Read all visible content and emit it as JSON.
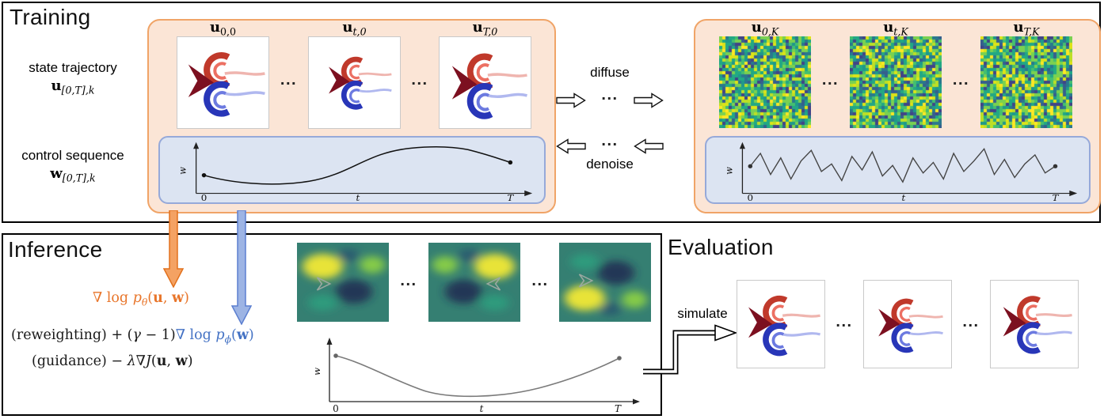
{
  "ellipsis": "...",
  "axis": {
    "y": "w",
    "x": "t",
    "start": "0",
    "end": "T"
  },
  "training": {
    "title": "Training",
    "state_label": "state trajectory",
    "state_math": [
      {
        "t": "u",
        "cls": "b"
      },
      {
        "t": "[0,T],k",
        "sub": true,
        "cls": "it"
      }
    ],
    "control_label": "control sequence",
    "control_math": [
      {
        "t": "w",
        "cls": "b"
      },
      {
        "t": "[0,T],k",
        "sub": true,
        "cls": "it"
      }
    ],
    "clean_frames": [
      [
        {
          "t": "u",
          "cls": "b"
        },
        {
          "t": "0,0",
          "sub": true
        }
      ],
      [
        {
          "t": "u",
          "cls": "b"
        },
        {
          "t": "t,0",
          "sub": true,
          "cls": "it"
        }
      ],
      [
        {
          "t": "u",
          "cls": "b"
        },
        {
          "t": "T,0",
          "sub": true,
          "cls": "it"
        }
      ]
    ],
    "noisy_frames": [
      [
        {
          "t": "u",
          "cls": "b"
        },
        {
          "t": "0,K",
          "sub": true,
          "cls": "it"
        }
      ],
      [
        {
          "t": "u",
          "cls": "b"
        },
        {
          "t": "t,K",
          "sub": true,
          "cls": "it"
        }
      ],
      [
        {
          "t": "u",
          "cls": "b"
        },
        {
          "t": "T,K",
          "sub": true,
          "cls": "it"
        }
      ]
    ],
    "diffuse": "diffuse",
    "denoise": "denoise"
  },
  "inference": {
    "title": "Inference",
    "eq1": [
      {
        "t": "∇ log ",
        "cls": "o"
      },
      {
        "t": "p",
        "cls": "o it"
      },
      {
        "t": "θ",
        "sub": true,
        "cls": "o it"
      },
      {
        "t": "(",
        "cls": "o"
      },
      {
        "t": "u",
        "cls": "o b"
      },
      {
        "t": ", ",
        "cls": "o"
      },
      {
        "t": "w",
        "cls": "o b"
      },
      {
        "t": ")",
        "cls": "o"
      }
    ],
    "eq2": [
      {
        "t": "(reweighting) + ("
      },
      {
        "t": "γ",
        "cls": "it"
      },
      {
        "t": " − 1)"
      },
      {
        "t": "∇ log ",
        "cls": "bl"
      },
      {
        "t": "p",
        "cls": "bl it"
      },
      {
        "t": "ϕ",
        "sub": true,
        "cls": "bl it"
      },
      {
        "t": "(",
        "cls": "bl"
      },
      {
        "t": "w",
        "cls": "bl b"
      },
      {
        "t": ")",
        "cls": "bl"
      }
    ],
    "eq3": [
      {
        "t": "(guidance)  −  "
      },
      {
        "t": "λ",
        "cls": "it"
      },
      {
        "t": "∇"
      },
      {
        "t": "J",
        "cls": "it"
      },
      {
        "t": "("
      },
      {
        "t": "u",
        "cls": "b"
      },
      {
        "t": ", "
      },
      {
        "t": "w",
        "cls": "b"
      },
      {
        "t": ")"
      }
    ]
  },
  "evaluation": {
    "title": "Evaluation",
    "simulate": "simulate"
  },
  "colors": {
    "accent_orange": "#e8752a",
    "accent_blue": "#4472c4",
    "panel_orange_fill": "#fbe5d6",
    "panel_orange_border": "#f0a467",
    "panel_blue_fill": "#dce4f2",
    "panel_blue_border": "#96a9d9",
    "arrow_orange_fill": "#f4a263",
    "arrow_orange_border": "#e2711d",
    "arrow_blue_fill": "#9db4e4",
    "arrow_blue_border": "#5c7fd0"
  }
}
